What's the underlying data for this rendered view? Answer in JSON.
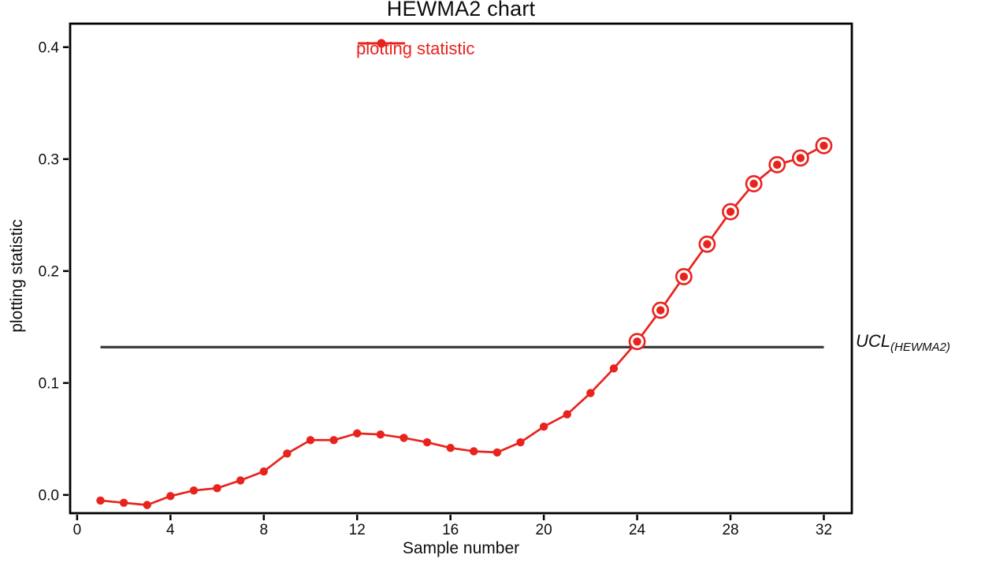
{
  "chart_data": {
    "type": "line",
    "title": "HEWMA2 chart",
    "xlabel": "Sample number",
    "ylabel": "plotting statistic",
    "legend": {
      "label": "plotting statistic",
      "position": "top-center"
    },
    "series_name": "plotting statistic",
    "series_color": "#e8231e",
    "frame_color": "#000000",
    "text_color": "#0d0d0d",
    "grid": false,
    "x": [
      1,
      2,
      3,
      4,
      5,
      6,
      7,
      8,
      9,
      10,
      11,
      12,
      13,
      14,
      15,
      16,
      17,
      18,
      19,
      20,
      21,
      22,
      23,
      24,
      25,
      26,
      27,
      28,
      29,
      30,
      31,
      32
    ],
    "values": [
      -0.005,
      -0.007,
      -0.009,
      -0.001,
      0.004,
      0.006,
      0.013,
      0.021,
      0.037,
      0.049,
      0.049,
      0.055,
      0.054,
      0.051,
      0.047,
      0.042,
      0.039,
      0.038,
      0.047,
      0.061,
      0.072,
      0.091,
      0.113,
      0.137,
      0.165,
      0.195,
      0.224,
      0.253,
      0.278,
      0.295,
      0.301,
      0.312
    ],
    "out_of_control_samples": [
      24,
      25,
      26,
      27,
      28,
      29,
      30,
      31,
      32
    ],
    "control_limit": {
      "name": "UCL",
      "sub": "(HEWMA2)",
      "value": 0.132,
      "x_start": 1,
      "x_end": 32,
      "color": "#3d3d3d"
    },
    "x_ticks": [
      0,
      4,
      8,
      12,
      16,
      20,
      24,
      28,
      32
    ],
    "y_ticks": [
      0.0,
      0.1,
      0.2,
      0.3,
      0.4
    ],
    "y_tick_labels": [
      "0.0",
      "0.1",
      "0.2",
      "0.3",
      "0.4"
    ],
    "xlim": [
      -0.3,
      33.2
    ],
    "ylim": [
      -0.0163,
      0.421
    ]
  }
}
